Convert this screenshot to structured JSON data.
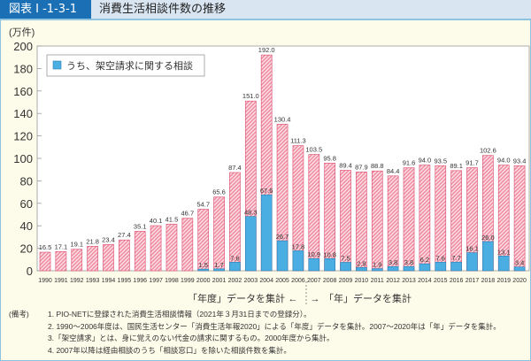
{
  "header": {
    "figure_number": "図表 I -1-3-1",
    "title": "消費生活相談件数の推移"
  },
  "chart_data": {
    "type": "bar",
    "title": "消費生活相談件数の推移",
    "ylabel": "(万件)",
    "ylim": [
      0,
      200
    ],
    "yticks": [
      0,
      20,
      40,
      60,
      80,
      100,
      120,
      140,
      160,
      180,
      200
    ],
    "categories": [
      "1990",
      "1991",
      "1992",
      "1993",
      "1994",
      "1995",
      "1996",
      "1997",
      "1998",
      "1999",
      "2000",
      "2001",
      "2002",
      "2003",
      "2004",
      "2005",
      "2006",
      "2007",
      "2008",
      "2009",
      "2010",
      "2011",
      "2012",
      "2013",
      "2014",
      "2015",
      "2016",
      "2017",
      "2018",
      "2019",
      "2020"
    ],
    "series": [
      {
        "name": "",
        "color": "#f08ca0",
        "pattern": "diagonal-hatch",
        "values": [
          16.5,
          17.1,
          19.1,
          21.8,
          23.4,
          27.4,
          35.1,
          40.1,
          41.5,
          46.7,
          54.7,
          65.6,
          87.4,
          151.0,
          192.0,
          130.4,
          111.3,
          103.5,
          95.8,
          89.4,
          87.9,
          88.8,
          84.4,
          91.6,
          94.0,
          93.5,
          89.1,
          91.7,
          102.6,
          94.0,
          93.4
        ]
      },
      {
        "name": "うち、架空請求に関する相談",
        "color": "#4aaee3",
        "values": [
          null,
          null,
          null,
          null,
          null,
          null,
          null,
          null,
          null,
          null,
          1.5,
          1.7,
          7.6,
          48.3,
          67.6,
          26.7,
          17.8,
          10.9,
          10.8,
          7.5,
          2.9,
          1.9,
          3.8,
          3.8,
          6.2,
          7.6,
          7.7,
          16.1,
          26.0,
          13.1,
          3.4
        ]
      }
    ],
    "legend_position": "top-left",
    "grid": false,
    "annotation": {
      "left": "「年度」データを集計",
      "right": "「年」データを集計"
    }
  },
  "notes": {
    "label": "(備考)",
    "items": [
      "1. PIO-NETに登録された消費生活相談情報（2021年３月31日までの登録分）。",
      "2. 1990～2006年度は、国民生活センター「消費生活年報2020」による「年度」データを集計。2007～2020年は「年」データを集計。",
      "3.「架空請求」とは、身に覚えのない代金の請求に関するもの。2000年度から集計。",
      "4. 2007年以降は経由相談のうち「相談窓口」を除いた相談件数を集計。"
    ]
  }
}
